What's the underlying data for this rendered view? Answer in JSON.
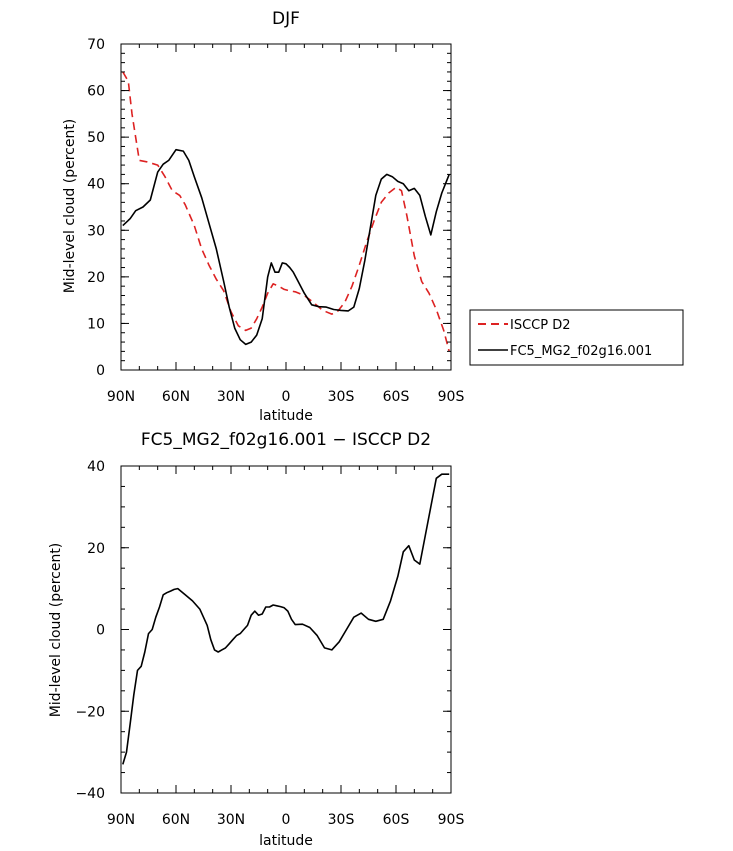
{
  "chart_data": [
    {
      "type": "line",
      "title": "DJF",
      "xlabel": "latitude",
      "ylabel": "Mid-level cloud (percent)",
      "xlim": [
        90,
        -90
      ],
      "ylim": [
        0,
        70
      ],
      "xticks": [
        90,
        60,
        30,
        0,
        -30,
        -60,
        -90
      ],
      "xtick_labels": [
        "90N",
        "60N",
        "30N",
        "0",
        "30S",
        "60S",
        "90S"
      ],
      "yticks": [
        0,
        10,
        20,
        30,
        40,
        50,
        60,
        70
      ],
      "ytick_labels": [
        "0",
        "10",
        "20",
        "30",
        "40",
        "50",
        "60",
        "70"
      ],
      "legend_position": "right",
      "series": [
        {
          "name": "ISCCP D2",
          "color": "#dd2222",
          "dash": "dashed",
          "x": [
            89,
            86,
            84,
            80,
            76,
            70,
            66,
            62,
            58,
            55,
            50,
            46,
            42,
            38,
            34,
            30,
            26,
            22,
            19,
            16,
            13,
            10,
            7,
            4,
            1,
            -2,
            -5,
            -10,
            -15,
            -20,
            -25,
            -28,
            -32,
            -36,
            -40,
            -44,
            -48,
            -52,
            -56,
            -60,
            -63,
            -66,
            -70,
            -74,
            -78,
            -82,
            -86,
            -89
          ],
          "y": [
            64,
            62,
            55,
            45,
            44.7,
            44,
            41.5,
            38.5,
            37.5,
            35.5,
            31,
            26,
            22.5,
            19.5,
            17,
            12.5,
            9.5,
            8.5,
            9,
            11,
            13.5,
            16.5,
            18.5,
            18,
            17.3,
            17,
            16.8,
            16,
            14.5,
            12.8,
            12,
            12.5,
            14.5,
            18,
            22.5,
            27.5,
            32,
            36,
            38,
            39.2,
            38.5,
            33,
            24.5,
            19,
            16.5,
            13,
            8.5,
            4
          ]
        },
        {
          "name": "FC5_MG2_f02g16.001",
          "color": "#000000",
          "dash": "solid",
          "x": [
            89,
            85,
            82,
            78,
            74,
            70,
            67,
            64,
            60,
            56,
            53,
            50,
            46,
            42,
            38,
            34,
            31,
            28,
            25,
            22,
            19,
            16,
            13,
            10,
            8,
            6,
            4,
            2,
            0,
            -2,
            -4,
            -6,
            -10,
            -14,
            -18,
            -22,
            -26,
            -30,
            -34,
            -37,
            -40,
            -43,
            -46,
            -49,
            -52,
            -55,
            -58,
            -61,
            -64,
            -67,
            -70,
            -73,
            -76,
            -79,
            -82,
            -85,
            -87,
            -89
          ],
          "y": [
            31,
            32.5,
            34.2,
            35,
            36.5,
            42.5,
            44.2,
            45,
            47.3,
            47,
            45,
            41.5,
            37,
            31.5,
            26,
            19,
            13.5,
            9,
            6.5,
            5.5,
            6,
            7.5,
            11,
            20,
            23,
            21,
            21,
            23,
            22.8,
            22,
            21,
            19.5,
            16.5,
            14,
            13.6,
            13.5,
            13,
            12.8,
            12.7,
            13.5,
            17.5,
            23.5,
            30.5,
            37.5,
            41,
            42,
            41.5,
            40.5,
            40,
            38.5,
            39,
            37.5,
            33,
            29,
            34,
            38,
            40,
            42
          ]
        }
      ]
    },
    {
      "type": "line",
      "title": "FC5_MG2_f02g16.001 − ISCCP D2",
      "xlabel": "latitude",
      "ylabel": "Mid-level cloud (percent)",
      "xlim": [
        90,
        -90
      ],
      "ylim": [
        -40,
        40
      ],
      "xticks": [
        90,
        60,
        30,
        0,
        -30,
        -60,
        -90
      ],
      "xtick_labels": [
        "90N",
        "60N",
        "30N",
        "0",
        "30S",
        "60S",
        "90S"
      ],
      "yticks": [
        -40,
        -20,
        0,
        20,
        40
      ],
      "ytick_labels": [
        "−40",
        "−20",
        "0",
        "20",
        "40"
      ],
      "series": [
        {
          "color": "#000000",
          "dash": "solid",
          "x": [
            89,
            87,
            85,
            83,
            81,
            79,
            77,
            75,
            73,
            71,
            69,
            67,
            65,
            63,
            61,
            59,
            55,
            51,
            47,
            43,
            41,
            39,
            37,
            35,
            33,
            31,
            29,
            27,
            25,
            23,
            21,
            19,
            17,
            15,
            13,
            11,
            9,
            7,
            5,
            3,
            1,
            -1,
            -3,
            -5,
            -9,
            -13,
            -17,
            -21,
            -25,
            -29,
            -33,
            -37,
            -41,
            -45,
            -49,
            -53,
            -57,
            -61,
            -64,
            -67,
            -70,
            -73,
            -76,
            -79,
            -82,
            -85,
            -88,
            -89
          ],
          "y": [
            -33,
            -30,
            -23,
            -16,
            -10,
            -9,
            -5.5,
            -1,
            0,
            3,
            5.5,
            8.5,
            9,
            9.4,
            9.8,
            10,
            8.5,
            7,
            5,
            1,
            -2.5,
            -5,
            -5.5,
            -5,
            -4.5,
            -3.5,
            -2.5,
            -1.5,
            -1,
            0,
            1,
            3.5,
            4.5,
            3.5,
            3.8,
            5.5,
            5.5,
            6,
            5.8,
            5.6,
            5.3,
            4.5,
            2.5,
            1.2,
            1.3,
            0.5,
            -1.5,
            -4.5,
            -5,
            -3,
            0,
            3,
            4,
            2.5,
            2,
            2.5,
            7,
            13,
            19,
            20.5,
            17,
            16,
            23,
            30,
            37,
            38,
            38,
            38
          ]
        }
      ]
    }
  ]
}
